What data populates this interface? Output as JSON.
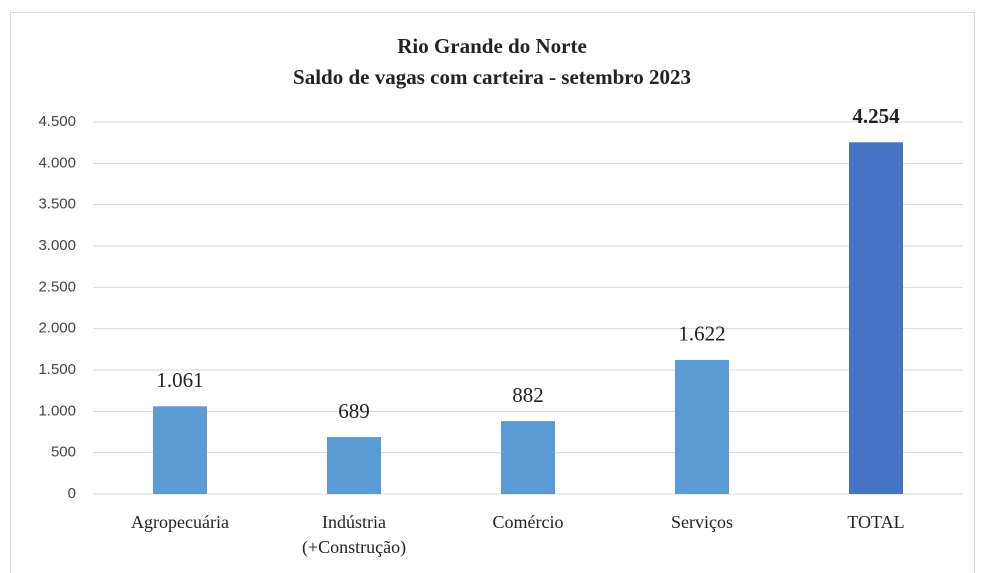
{
  "chart_data": {
    "type": "bar",
    "title": "Rio Grande do Norte",
    "subtitle": "Saldo de vagas com carteira - setembro 2023",
    "categories": [
      "Agropecuária",
      "Indústria\n(+Construção)",
      "Comércio",
      "Serviços",
      "TOTAL"
    ],
    "values": [
      1061,
      689,
      882,
      1622,
      4254
    ],
    "value_labels": [
      "1.061",
      "689",
      "882",
      "1.622",
      "4.254"
    ],
    "colors": [
      "#5b9bd5",
      "#5b9bd5",
      "#5b9bd5",
      "#5b9bd5",
      "#4472c4"
    ],
    "ylim": [
      0,
      4500
    ],
    "yticks": [
      0,
      500,
      {
        "value": 1000,
        "label": "1.000"
      },
      {
        "value": 1500,
        "label": "1.500"
      },
      {
        "value": 2000,
        "label": "2.000"
      },
      {
        "value": 2500,
        "label": "2.500"
      },
      {
        "value": 3000,
        "label": "3.000"
      },
      {
        "value": 3500,
        "label": "3.500"
      },
      {
        "value": 4000,
        "label": "4.000"
      },
      {
        "value": 4500,
        "label": "4.500"
      }
    ],
    "grid": true
  }
}
